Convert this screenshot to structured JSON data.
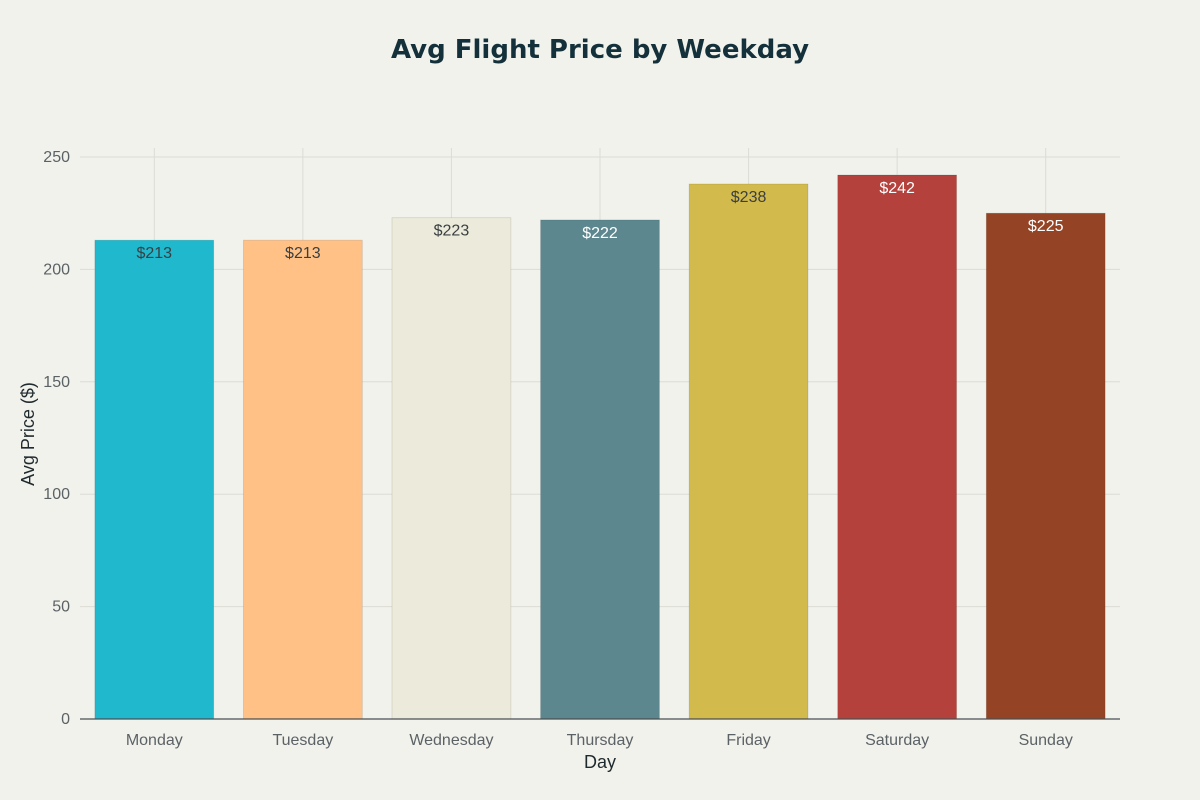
{
  "chart_data": {
    "type": "bar",
    "title": "Avg Flight Price by Weekday",
    "xlabel": "Day",
    "ylabel": "Avg Price ($)",
    "categories": [
      "Monday",
      "Tuesday",
      "Wednesday",
      "Thursday",
      "Friday",
      "Saturday",
      "Sunday"
    ],
    "values": [
      213,
      213,
      223,
      222,
      238,
      242,
      225
    ],
    "data_labels": [
      "$213",
      "$213",
      "$223",
      "$222",
      "$238",
      "$242",
      "$225"
    ],
    "ylim": [
      0,
      250
    ],
    "yticks": [
      0,
      50,
      100,
      150,
      200,
      250
    ],
    "grid": true,
    "legend": "none",
    "colors": [
      "#1fb8cd",
      "#ffc185",
      "#eceadb",
      "#5d878f",
      "#d2ba4c",
      "#b4413c",
      "#944424"
    ],
    "label_colors": [
      "#3a3f42",
      "#3a3f42",
      "#3a3f42",
      "#ffffff",
      "#3a3f42",
      "#ffffff",
      "#ffffff"
    ]
  }
}
